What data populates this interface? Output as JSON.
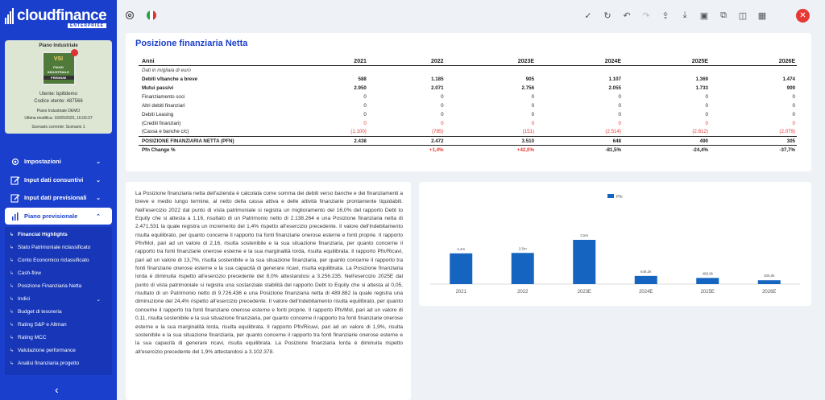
{
  "brand": {
    "name": "cloudfinance",
    "sub": "ENTERPRISE"
  },
  "card": {
    "title": "Piano Industriale",
    "badge_lines": [
      "VSI",
      "PIANO",
      "INDUSTRIALE",
      "PREMIUM"
    ],
    "user": "Utente: bpiltdemo",
    "code": "Codice utente: 487566",
    "plan": "Piano Industriale DEMO",
    "modified": "Ultima modifica: 16/05/2025, 16:03:37",
    "scenario": "Scenario corrente: Scenario 1"
  },
  "nav": [
    {
      "label": "Impostazioni"
    },
    {
      "label": "Input dati consuntivi"
    },
    {
      "label": "Input dati previsionali"
    },
    {
      "label": "Piano previsionale"
    }
  ],
  "subnav": [
    "Financial Highlights",
    "Stato Patrimoniale riclassificato",
    "Conto Economico riclassificato",
    "Cash-flow",
    "Posizione Finanziaria Netta",
    "Indici",
    "Budget di tesoreria",
    "Rating S&P e Altman",
    "Rating MCC",
    "Valutazione performance",
    "Analisi finanziaria progetto"
  ],
  "colors": {
    "primary": "#1a3fcc",
    "negative": "#e53935",
    "bar": "#1565c0"
  },
  "icons": [
    "check-icon",
    "refresh-icon",
    "undo-icon",
    "redo-icon",
    "upload-icon",
    "download-icon",
    "save-icon",
    "copy-icon",
    "columns-icon",
    "layout-icon",
    "close-icon"
  ],
  "page": {
    "title": "Posizione finanziaria Netta"
  },
  "table": {
    "headers": [
      "Anni",
      "2021",
      "2022",
      "2023E",
      "2024E",
      "2025E",
      "2026E"
    ],
    "rows": [
      {
        "label": "Dati in migliaia di euro",
        "values": [
          "",
          "",
          "",
          "",
          "",
          ""
        ],
        "style": "note"
      },
      {
        "label": "Debiti v/banche a breve",
        "values": [
          "588",
          "1.185",
          "905",
          "1.107",
          "1.369",
          "1.474"
        ],
        "style": "b"
      },
      {
        "label": "Mutui passivi",
        "values": [
          "2.950",
          "2.071",
          "2.756",
          "2.055",
          "1.733",
          "909"
        ],
        "style": "b"
      },
      {
        "label": "Finanziamento soci",
        "values": [
          "0",
          "0",
          "0",
          "0",
          "0",
          "0"
        ],
        "style": ""
      },
      {
        "label": "Altri debiti finanziari",
        "values": [
          "0",
          "0",
          "0",
          "0",
          "0",
          "0"
        ],
        "style": ""
      },
      {
        "label": "Debiti Leasing",
        "values": [
          "0",
          "0",
          "0",
          "0",
          "0",
          "0"
        ],
        "style": ""
      },
      {
        "label": "(Crediti finanziari)",
        "values": [
          "0",
          "0",
          "0",
          "0",
          "0",
          "0"
        ],
        "style": "negrow"
      },
      {
        "label": "(Cassa e banche c/c)",
        "values": [
          "(1.100)",
          "(785)",
          "(151)",
          "(2.514)",
          "(2.612)",
          "(2.079)"
        ],
        "style": "negrow"
      },
      {
        "label": "POSIZIONE FINANZIARIA NETTA (PFN)",
        "values": [
          "2.438",
          "2.472",
          "3.510",
          "648",
          "490",
          "305"
        ],
        "style": "total"
      },
      {
        "label": "Pfn Change %",
        "values": [
          "",
          "+1,4%",
          "+42,0%",
          "-81,5%",
          "-24,4%",
          "-37,7%"
        ],
        "style": "b change"
      }
    ]
  },
  "analysis_text": "La Posizione finanziaria netta dell'azienda è calcolata come somma dei debiti verso banche e dei finanziamenti a breve e medio lungo termine, al netto della cassa attiva e delle attività finanziarie prontamente liquidabili. Nell'esercizio 2022 dal punto di vista patrimoniale si registra un miglioramento del 16,0% del rapporto Debt to Equity che si attesta a 1,16, risultato di un Patrimonio netto di 2.138.264 e una Posizione finanziaria netta di 2.471.531 la quale registra un incremento del 1,4% rispetto all'esercizio precedente. Il valore dell'indebitamento risulta equilibrato, per quanto concerne il rapporto tra fonti finanziarie onerose esterne e fonti proprie. Il rapporto Pfn/Mol, pari ad un valore di 2,16, risulta sostenibile e la sua situazione finanziaria, per quanto concerne il rapporto tra fonti finanziarie onerose esterne e la sua marginalità lorda, risulta equilibrata. Il rapporto Pfn/Ricavi, pari ad un valore di 13,7%, risulta sostenibile e la sua situazione finanziaria, per quanto concerne il rapporto tra fonti finanziarie onerose esterne e la sua capacità di generare ricavi, risulta equilibrata. La Posizione finanziaria lorda è diminuita rispetto all'esercizio precedente del 8,0% attestandosi a 3.256.235. Nell'esercizio 2025E dal punto di vista patrimoniale si registra una sostanziale stabilità del rapporto Debt to Equity che si attesta al 0,05, risultato di un Patrimonio netto di 9.726.436 e una Posizione finanziaria netta di 489.882 la quale registra una diminuzione del 24,4% rispetto all'esercizio precedente. Il valore dell'indebitamento risulta equilibrato, per quanto concerne il rapporto tra fonti finanziarie onerose esterne e fonti proprie. Il rapporto Pfn/Mol, pari ad un valore di 0,11, risulta sostenibile e la sua situazione finanziaria, per quanto concerne il rapporto tra fonti finanziarie onerose esterne e la sua marginalità lorda, risulta equilibrata. Il rapporto Pfn/Ricavi, pari ad un valore di 1,9%, risulta sostenibile e la sua situazione finanziaria, per quanto concerne il rapporto tra fonti finanziarie onerose esterne e la sua capacità di generare ricavi, risulta equilibrata. La Posizione finanziaria lorda è diminuita rispetto all'esercizio precedente del 1,9% attestandosi a 3.102.378.",
  "chart_data": {
    "type": "bar",
    "categories": [
      "2021",
      "2022",
      "2023E",
      "2024E",
      "2025E",
      "2026E"
    ],
    "series": [
      {
        "name": "Pfn",
        "values": [
          2438,
          2472,
          3510,
          648,
          490,
          305
        ]
      }
    ],
    "data_labels": [
      "2,4m",
      "2,5m",
      "3,5m",
      "648,2k",
      "489,9k",
      "305,0k"
    ],
    "legend": "top-center",
    "grid": false
  }
}
